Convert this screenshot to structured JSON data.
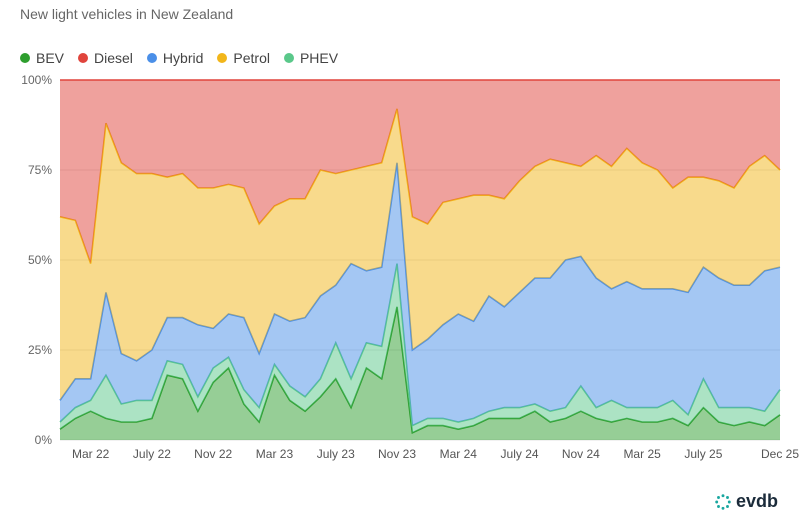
{
  "title": "New light vehicles in New Zealand",
  "brand": {
    "name": "evdb",
    "icon": "evdb-logo-icon",
    "color": "#1aa7a0"
  },
  "legend": [
    {
      "label": "BEV",
      "color": "#2e9e2e"
    },
    {
      "label": "Diesel",
      "color": "#e0443c"
    },
    {
      "label": "Hybrid",
      "color": "#4a8fe8"
    },
    {
      "label": "Petrol",
      "color": "#f2b61a"
    },
    {
      "label": "PHEV",
      "color": "#5ac88a"
    }
  ],
  "chart_data": {
    "type": "area",
    "stacked": true,
    "percent": true,
    "title": "New light vehicles in New Zealand",
    "ylim": [
      0,
      100
    ],
    "yticks": [
      "0%",
      "25%",
      "50%",
      "75%",
      "100%"
    ],
    "xtick_labels": [
      "Mar 22",
      "July 22",
      "Nov 22",
      "Mar 23",
      "July 23",
      "Nov 23",
      "Mar 24",
      "July 24",
      "Nov 24",
      "Mar 25",
      "July 25",
      "Dec 25"
    ],
    "x": [
      "Jan 22",
      "Feb 22",
      "Mar 22",
      "Apr 22",
      "May 22",
      "Jun 22",
      "Jul 22",
      "Aug 22",
      "Sep 22",
      "Oct 22",
      "Nov 22",
      "Dec 22",
      "Jan 23",
      "Feb 23",
      "Mar 23",
      "Apr 23",
      "May 23",
      "Jun 23",
      "Jul 23",
      "Aug 23",
      "Sep 23",
      "Oct 23",
      "Nov 23",
      "Dec 23",
      "Jan 24",
      "Feb 24",
      "Mar 24",
      "Apr 24",
      "May 24",
      "Jun 24",
      "Jul 24",
      "Aug 24",
      "Sep 24",
      "Oct 24",
      "Nov 24",
      "Dec 24",
      "Jan 25",
      "Feb 25",
      "Mar 25",
      "Apr 25",
      "May 25",
      "Jun 25",
      "Jul 25",
      "Aug 25",
      "Sep 25",
      "Oct 25",
      "Nov 25",
      "Dec 25"
    ],
    "series": [
      {
        "name": "BEV",
        "values": [
          3,
          6,
          8,
          6,
          5,
          5,
          6,
          18,
          17,
          8,
          16,
          20,
          10,
          5,
          18,
          11,
          8,
          12,
          17,
          9,
          20,
          17,
          37,
          2,
          4,
          4,
          3,
          4,
          6,
          6,
          6,
          8,
          5,
          6,
          8,
          6,
          5,
          6,
          5,
          5,
          6,
          4,
          9,
          5,
          4,
          5,
          4,
          7
        ]
      },
      {
        "name": "PHEV",
        "values": [
          2,
          3,
          3,
          12,
          5,
          6,
          5,
          4,
          4,
          4,
          4,
          3,
          4,
          4,
          3,
          4,
          4,
          5,
          10,
          8,
          7,
          9,
          12,
          2,
          2,
          2,
          2,
          2,
          2,
          3,
          3,
          2,
          3,
          3,
          7,
          3,
          6,
          3,
          4,
          4,
          5,
          3,
          8,
          4,
          5,
          4,
          4,
          7
        ]
      },
      {
        "name": "Hybrid",
        "values": [
          6,
          8,
          6,
          23,
          14,
          11,
          14,
          12,
          13,
          20,
          11,
          12,
          20,
          15,
          14,
          18,
          22,
          23,
          16,
          32,
          20,
          22,
          28,
          21,
          22,
          26,
          30,
          27,
          32,
          28,
          32,
          35,
          37,
          41,
          36,
          36,
          31,
          35,
          33,
          33,
          31,
          34,
          31,
          36,
          34,
          34,
          39,
          34
        ]
      },
      {
        "name": "Petrol",
        "values": [
          51,
          44,
          32,
          47,
          53,
          52,
          49,
          39,
          40,
          38,
          39,
          36,
          36,
          36,
          30,
          34,
          33,
          35,
          31,
          26,
          29,
          29,
          15,
          37,
          32,
          34,
          32,
          35,
          28,
          30,
          31,
          31,
          33,
          27,
          25,
          34,
          34,
          37,
          35,
          33,
          28,
          32,
          25,
          27,
          27,
          33,
          32,
          27
        ]
      },
      {
        "name": "Diesel",
        "values": [
          38,
          39,
          51,
          12,
          23,
          26,
          26,
          27,
          26,
          30,
          30,
          29,
          30,
          40,
          35,
          33,
          33,
          25,
          26,
          25,
          24,
          23,
          8,
          38,
          40,
          34,
          33,
          32,
          32,
          33,
          28,
          24,
          22,
          23,
          24,
          21,
          24,
          19,
          23,
          25,
          30,
          27,
          27,
          28,
          30,
          24,
          21,
          25
        ]
      }
    ]
  }
}
